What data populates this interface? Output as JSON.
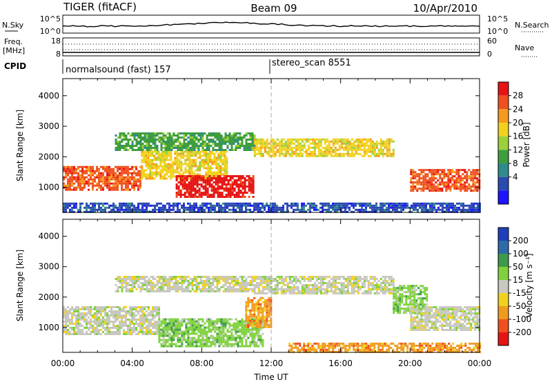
{
  "header": {
    "radar": "TIGER (fitACF)",
    "beam": "Beam 09",
    "date": "10/Apr/2010"
  },
  "strips": {
    "nsky_label": "N.Sky",
    "nsky_ticks": [
      "10^5",
      "10^0"
    ],
    "nsearch_label": "N.Search",
    "nsearch_ticks": [
      "10^5",
      "10^0"
    ],
    "freq_label_1": "Freq.",
    "freq_label_2": "[MHz]",
    "freq_ticks": [
      "18",
      "8"
    ],
    "nave_label": "Nave",
    "nave_ticks": [
      "60",
      "0"
    ],
    "cpid_label": "CPID",
    "cpid_entries": [
      "normalsound (fast) 157",
      "stereo_scan 8551"
    ]
  },
  "chart_data": [
    {
      "type": "heatmap",
      "name": "power",
      "xlabel": "Time UT",
      "ylabel": "Slant Range [km]",
      "xticks": [
        "00:00",
        "04:00",
        "08:00",
        "12:00",
        "16:00",
        "20:00",
        "00:00"
      ],
      "yticks": [
        1000,
        2000,
        3000,
        4000
      ],
      "xlim": [
        0,
        24
      ],
      "ylim": [
        180,
        4560
      ],
      "colorbar_label": "Power [dB]",
      "colorbar_ticks": [
        "4",
        "8",
        "12",
        "16",
        "20",
        "24",
        "28"
      ],
      "colorbar_colors": [
        "#1e14ff",
        "#2a4ab0",
        "#2f8a8c",
        "#3f9e3c",
        "#9bd03a",
        "#f0d21e",
        "#f59a1e",
        "#f0501e",
        "#e61414"
      ],
      "echo_regions": [
        {
          "t0": 0.0,
          "t1": 4.5,
          "r0": 900,
          "r1": 1700,
          "level": 26
        },
        {
          "t0": 4.5,
          "t1": 9.5,
          "r0": 1300,
          "r1": 2200,
          "level": 20
        },
        {
          "t0": 6.5,
          "t1": 11.0,
          "r0": 700,
          "r1": 1400,
          "level": 28
        },
        {
          "t0": 3.0,
          "t1": 11.0,
          "r0": 2200,
          "r1": 2800,
          "level": 14
        },
        {
          "t0": 11.0,
          "t1": 19.0,
          "r0": 2000,
          "r1": 2600,
          "level": 18
        },
        {
          "t0": 20.0,
          "t1": 24.0,
          "r0": 900,
          "r1": 1600,
          "level": 26
        },
        {
          "t0": 0.0,
          "t1": 24.0,
          "r0": 180,
          "r1": 500,
          "level": 8
        }
      ]
    },
    {
      "type": "heatmap",
      "name": "velocity",
      "xlabel": "Time UT",
      "ylabel": "Slant Range [km]",
      "xticks": [
        "00:00",
        "04:00",
        "08:00",
        "12:00",
        "16:00",
        "20:00",
        "00:00"
      ],
      "yticks": [
        1000,
        2000,
        3000,
        4000
      ],
      "xlim": [
        0,
        24
      ],
      "ylim": [
        180,
        4560
      ],
      "colorbar_label": "Velocity [m s⁻¹]",
      "colorbar_ticks": [
        "200",
        "100",
        "50",
        "15",
        "-15",
        "-50",
        "-100",
        "-200"
      ],
      "colorbar_colors": [
        "#1f3fb8",
        "#2e6aa8",
        "#3c9a4a",
        "#7fd23c",
        "#c8c8c0",
        "#f0d21e",
        "#f09a1e",
        "#f0501e",
        "#e61414"
      ],
      "echo_regions": [
        {
          "t0": 0.0,
          "t1": 5.5,
          "r0": 800,
          "r1": 1700,
          "level": 0
        },
        {
          "t0": 3.0,
          "t1": 11.0,
          "r0": 2200,
          "r1": 2700,
          "level": 0
        },
        {
          "t0": 5.5,
          "t1": 11.5,
          "r0": 400,
          "r1": 1300,
          "level": 30
        },
        {
          "t0": 10.5,
          "t1": 12.0,
          "r0": 1000,
          "r1": 2000,
          "level": -60
        },
        {
          "t0": 11.0,
          "t1": 19.0,
          "r0": 2100,
          "r1": 2700,
          "level": 0
        },
        {
          "t0": 19.0,
          "t1": 21.0,
          "r0": 1500,
          "r1": 2400,
          "level": 30
        },
        {
          "t0": 20.0,
          "t1": 24.0,
          "r0": 900,
          "r1": 1700,
          "level": 0
        },
        {
          "t0": 13.0,
          "t1": 24.0,
          "r0": 200,
          "r1": 500,
          "level": -60
        }
      ]
    }
  ]
}
